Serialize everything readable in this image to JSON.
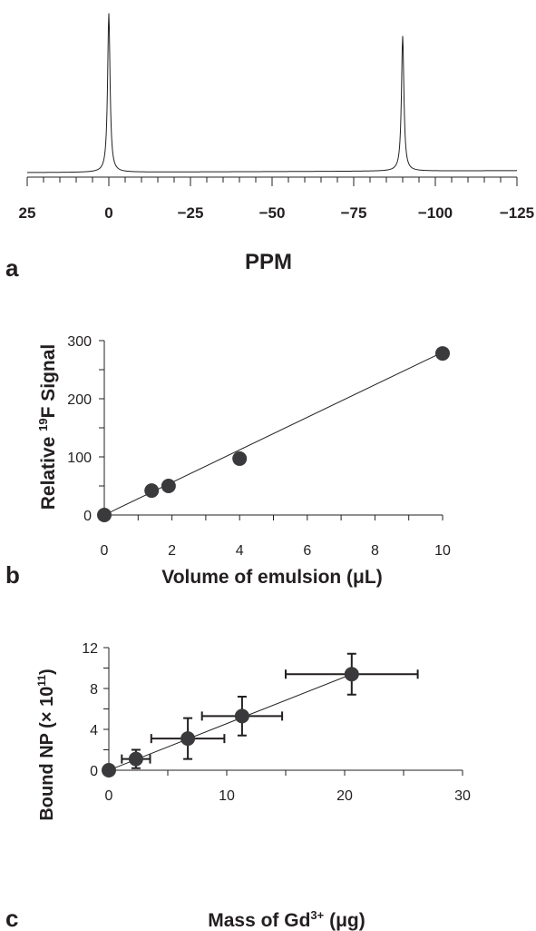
{
  "chart_data": [
    {
      "panel": "a",
      "type": "line",
      "xlabel": "PPM",
      "xlim": [
        25,
        -125
      ],
      "xticks": [
        "25",
        "0",
        "−25",
        "−50",
        "−75",
        "−100",
        "−125"
      ],
      "xtick_values": [
        25,
        0,
        -25,
        -50,
        -75,
        -100,
        -125
      ],
      "peaks": [
        {
          "x": 0,
          "y": 1.0
        },
        {
          "x": -90,
          "y": 0.85
        }
      ],
      "grid": false
    },
    {
      "panel": "b",
      "type": "scatter",
      "xlabel": "Volume of emulsion (μL)",
      "ylabel_pre": "Relative ",
      "ylabel_sup": "19",
      "ylabel_post": "F Signal",
      "xlim": [
        0,
        10
      ],
      "ylim": [
        0,
        300
      ],
      "xticks": [
        0,
        2,
        4,
        6,
        8,
        10
      ],
      "yticks": [
        0,
        100,
        200,
        300
      ],
      "x": [
        0,
        1.4,
        1.9,
        4,
        10
      ],
      "y": [
        0,
        42,
        50,
        97,
        278
      ],
      "fit_line": {
        "x": [
          0,
          10
        ],
        "y": [
          0,
          280
        ]
      },
      "grid": false
    },
    {
      "panel": "c",
      "type": "scatter",
      "xlabel_pre": "Mass of Gd",
      "xlabel_sup": "3+",
      "xlabel_post": " (μg)",
      "ylabel_pre": "Bound NP (× 10",
      "ylabel_sup": "11",
      "ylabel_post": ")",
      "xlim": [
        0,
        30
      ],
      "ylim": [
        0,
        12
      ],
      "xticks": [
        0,
        10,
        20,
        30
      ],
      "yticks": [
        0,
        4,
        8,
        12
      ],
      "x": [
        0,
        2.3,
        6.7,
        11.3,
        20.6
      ],
      "y": [
        0,
        1.1,
        3.1,
        5.3,
        9.4
      ],
      "xerr": [
        0,
        1.2,
        3.1,
        3.4,
        5.6
      ],
      "yerr": [
        0,
        0.9,
        2.0,
        1.9,
        2.0
      ],
      "fit_line": {
        "x": [
          0,
          20.6
        ],
        "y": [
          0,
          9.4
        ]
      },
      "grid": false
    }
  ],
  "labels": {
    "a": "a",
    "b": "b",
    "c": "c"
  }
}
